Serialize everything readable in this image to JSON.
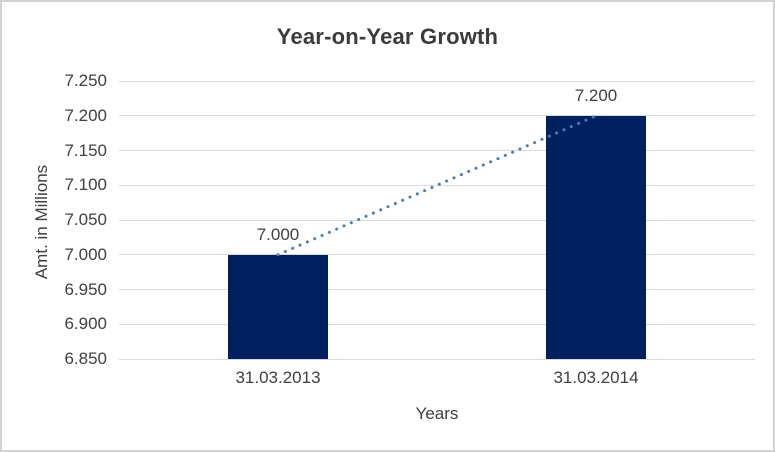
{
  "chart_data": {
    "type": "bar",
    "title": "Year-on-Year Growth",
    "xlabel": "Years",
    "ylabel": "Amt. in Millions",
    "categories": [
      "31.03.2013",
      "31.03.2014"
    ],
    "values": [
      7.0,
      7.2
    ],
    "data_labels": [
      "7.000",
      "7.200"
    ],
    "ylim": [
      6.85,
      7.25
    ],
    "ytick_labels_top_to_bottom": [
      "7.250",
      "7.200",
      "7.150",
      "7.100",
      "7.050",
      "7.000",
      "6.950",
      "6.900",
      "6.850"
    ],
    "grid": true,
    "legend": "none",
    "trendline": {
      "style": "dotted",
      "from_value": 7.0,
      "to_value": 7.2
    }
  },
  "colors": {
    "bar": "#002060",
    "trendline": "#4a7ebb",
    "gridline": "#d9d9d9",
    "title_text": "#3b3b3b",
    "label_text": "#404040",
    "frame_border": "#d2d2d2",
    "background": "#ffffff"
  }
}
